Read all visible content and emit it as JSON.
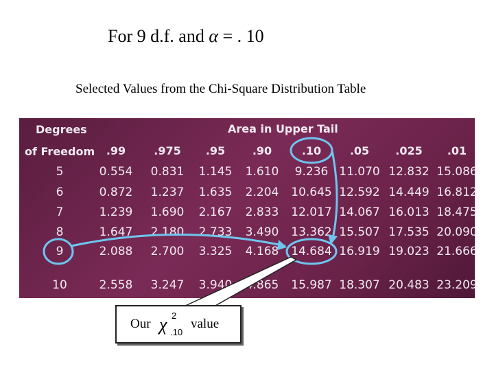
{
  "heading": {
    "prefix": "For 9 d.f. and ",
    "alpha": "α",
    "suffix": " = . 10"
  },
  "subtitle": "Selected Values from the Chi-Square Distribution Table",
  "table": {
    "header_degrees": "Degrees",
    "header_area": "Area in Upper Tail",
    "header_df": "of Freedom",
    "columns": [
      ".99",
      ".975",
      ".95",
      ".90",
      ".10",
      ".05",
      ".025",
      ".01"
    ],
    "rows": [
      {
        "df": "5",
        "values": [
          "0.554",
          "0.831",
          "1.145",
          "1.610",
          "9.236",
          "11.070",
          "12.832",
          "15.086"
        ]
      },
      {
        "df": "6",
        "values": [
          "0.872",
          "1.237",
          "1.635",
          "2.204",
          "10.645",
          "12.592",
          "14.449",
          "16.812"
        ]
      },
      {
        "df": "7",
        "values": [
          "1.239",
          "1.690",
          "2.167",
          "2.833",
          "12.017",
          "14.067",
          "16.013",
          "18.475"
        ]
      },
      {
        "df": "8",
        "values": [
          "1.647",
          "2.180",
          "2.733",
          "3.490",
          "13.362",
          "15.507",
          "17.535",
          "20.090"
        ]
      },
      {
        "df": "9",
        "values": [
          "2.088",
          "2.700",
          "3.325",
          "4.168",
          "14.684",
          "16.919",
          "19.023",
          "21.666"
        ]
      },
      {
        "df": "10",
        "values": [
          "2.558",
          "3.247",
          "3.940",
          "4.865",
          "15.987",
          "18.307",
          "20.483",
          "23.209"
        ]
      }
    ]
  },
  "callout": {
    "our": "Our",
    "chi": "χ",
    "sup": "2",
    "sub": ".10",
    "value": "value"
  },
  "colors": {
    "table_bg": "#6a2249",
    "text": "#f2eaf0",
    "highlight": "#6ec6f0"
  }
}
